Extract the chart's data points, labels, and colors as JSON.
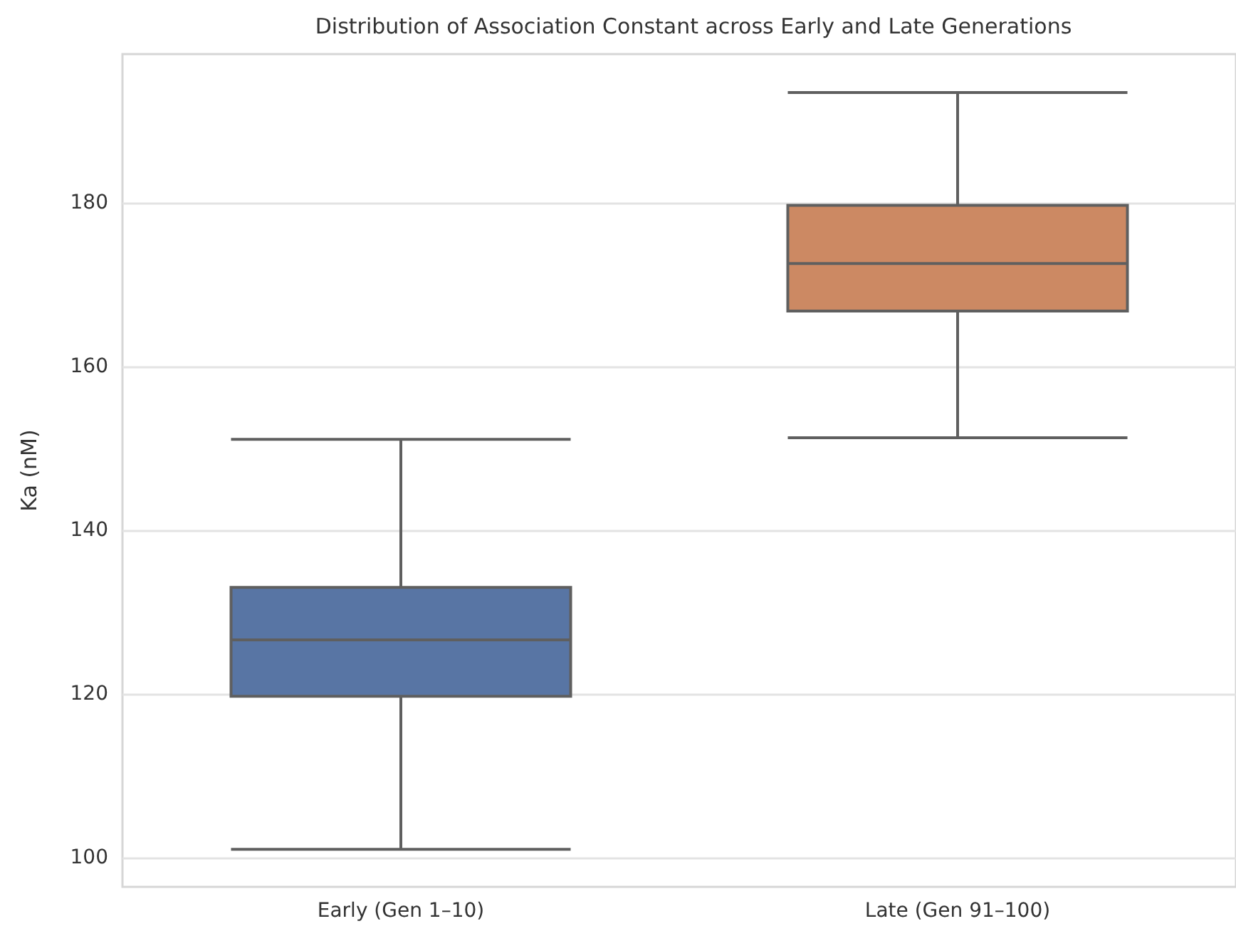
{
  "chart_data": {
    "type": "box",
    "title": "Distribution of Association Constant across Early and Late Generations",
    "ylabel": "Ka (nM)",
    "categories": [
      "Early (Gen 1–10)",
      "Late (Gen 91–100)"
    ],
    "boxes": [
      {
        "low": 101.0,
        "q1": 119.7,
        "median": 126.6,
        "q3": 133.0,
        "high": 151.1
      },
      {
        "low": 151.3,
        "q1": 166.8,
        "median": 172.6,
        "q3": 179.7,
        "high": 193.5
      }
    ],
    "colors": [
      "#5875a4",
      "#cc8963"
    ],
    "ylim": [
      96.4,
      198.2
    ],
    "yticks": [
      100,
      120,
      140,
      160,
      180
    ],
    "grid": "y"
  }
}
